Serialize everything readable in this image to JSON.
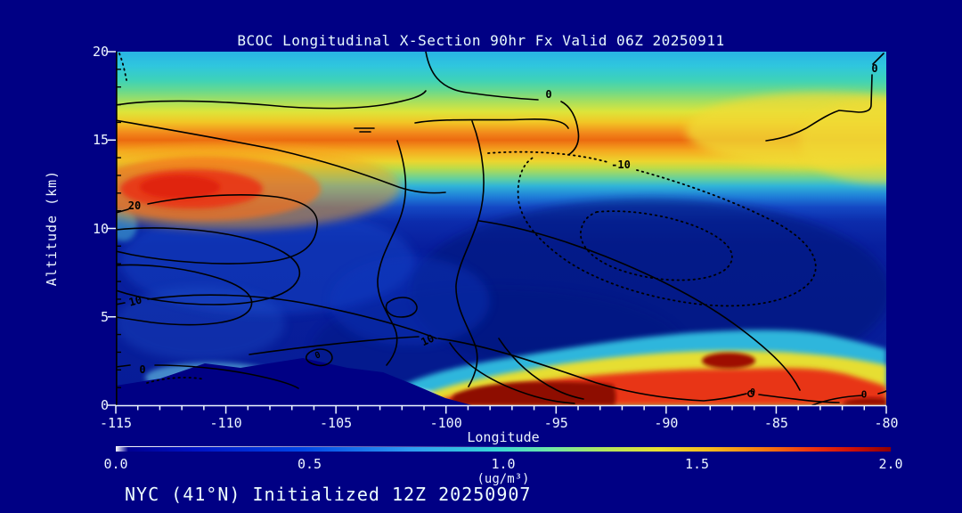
{
  "title": "BCOC Longitudinal X-Section 90hr  Fx Valid 06Z 20250911",
  "annotation": "NYC (41°N) Initialized 12Z 20250907",
  "axes": {
    "y": {
      "label": "Altitude (km)",
      "ticks": [
        "20",
        "15",
        "10",
        "5",
        "0"
      ],
      "range_km": [
        0,
        20
      ]
    },
    "x": {
      "label": "Longitude",
      "ticks": [
        "-115",
        "-110",
        "-105",
        "-100",
        "-95",
        "-90",
        "-85",
        "-80"
      ],
      "range_deg": [
        -115,
        -80
      ],
      "minor_step_deg": 1
    }
  },
  "colorbar": {
    "ticks": [
      "0.0",
      "0.5",
      "1.0",
      "1.5",
      "2.0"
    ],
    "units_label": "(ug/m³)",
    "min": 0.0,
    "max": 2.0
  },
  "contour_labels": [
    {
      "text": "0",
      "lon": -95.3,
      "alt_km": 17.6
    },
    {
      "text": "0",
      "lon": -80.5,
      "alt_km": 19.0
    },
    {
      "text": "20",
      "lon": -114.2,
      "alt_km": 11.3
    },
    {
      "text": "10",
      "lon": -114.1,
      "alt_km": 5.9
    },
    {
      "text": "0",
      "lon": -113.8,
      "alt_km": 2.0
    },
    {
      "text": "-10",
      "lon": -92.1,
      "alt_km": 13.6
    },
    {
      "text": "10",
      "lon": -100.8,
      "alt_km": 3.6
    },
    {
      "text": "0",
      "lon": -105.8,
      "alt_km": 2.8
    },
    {
      "text": "0",
      "lon": -86.1,
      "alt_km": 0.7
    },
    {
      "text": "0",
      "lon": -81.0,
      "alt_km": 0.6
    }
  ],
  "colors": {
    "background": "#000084",
    "text": "#EDF6FF",
    "contour_line": "#000000",
    "shading_low": "#071C96",
    "shading_high": "#8E0000"
  },
  "chart_data": {
    "type": "heatmap",
    "title": "BCOC Longitudinal X-Section 90hr  Fx Valid 06Z 20250911",
    "xlabel": "Longitude",
    "ylabel": "Altitude (km)",
    "x_range": [
      -115,
      -80
    ],
    "y_range": [
      0,
      20
    ],
    "legend_position": "bottom colorbar",
    "colorbar": {
      "min": 0.0,
      "max": 2.0,
      "units": "ug/m3",
      "ticks": [
        0.0,
        0.5,
        1.0,
        1.5,
        2.0
      ]
    },
    "x": [
      -115,
      -110,
      -105,
      -100,
      -95,
      -90,
      -85,
      -80
    ],
    "altitudes_km": [
      0,
      2,
      5,
      8,
      10,
      12,
      14,
      16,
      18,
      20
    ],
    "values_ug_m3": [
      [
        0.3,
        0.25,
        0.25,
        1.2,
        2.0,
        1.7,
        1.5,
        1.6
      ],
      [
        0.35,
        0.3,
        0.3,
        0.3,
        0.6,
        1.3,
        1.2,
        1.0
      ],
      [
        0.4,
        0.35,
        0.3,
        0.2,
        0.2,
        0.2,
        0.2,
        0.3
      ],
      [
        0.5,
        0.45,
        0.35,
        0.25,
        0.2,
        0.15,
        0.2,
        0.25
      ],
      [
        0.6,
        0.55,
        0.4,
        0.3,
        0.2,
        0.15,
        0.2,
        0.3
      ],
      [
        1.5,
        1.65,
        0.8,
        0.5,
        0.4,
        0.35,
        0.4,
        0.5
      ],
      [
        1.3,
        1.35,
        1.3,
        1.35,
        1.3,
        1.25,
        1.2,
        1.15
      ],
      [
        0.9,
        0.8,
        0.8,
        0.8,
        0.75,
        0.7,
        0.8,
        1.1
      ],
      [
        0.6,
        0.55,
        0.6,
        0.6,
        0.55,
        0.5,
        0.6,
        0.8
      ],
      [
        0.45,
        0.4,
        0.45,
        0.5,
        0.45,
        0.4,
        0.5,
        0.6
      ]
    ],
    "overlay_contours": {
      "labeled_levels": [
        20,
        10,
        0,
        -10
      ],
      "style": "solid black = zero/positive, dotted black = negative",
      "terrain_mask": "surface terrain blocks data below ~2.5 km between -115 and -100 longitude"
    }
  }
}
